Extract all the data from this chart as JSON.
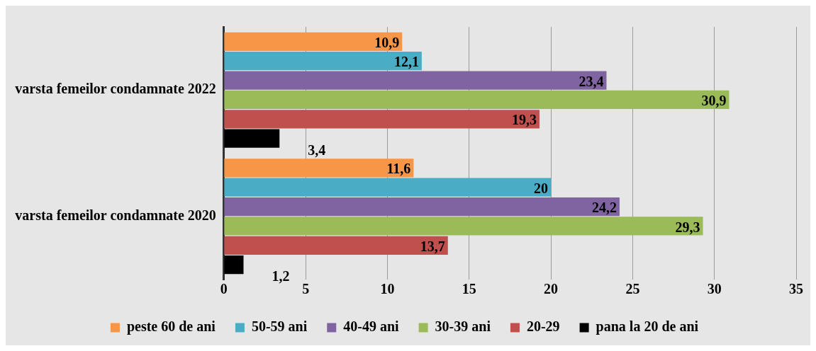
{
  "chart_data": {
    "type": "bar",
    "orientation": "horizontal",
    "categories": [
      "varsta femeilor condamnate 2022",
      "varsta femeilor condamnate 2020"
    ],
    "series": [
      {
        "name": "peste 60 de ani",
        "color": "#f79646",
        "values": [
          10.9,
          11.6
        ],
        "value_labels": [
          "10,9",
          "11,6"
        ]
      },
      {
        "name": "50-59 ani",
        "color": "#4bacc6",
        "values": [
          12.1,
          20
        ],
        "value_labels": [
          "12,1",
          "20"
        ]
      },
      {
        "name": "40-49 ani",
        "color": "#8064a2",
        "values": [
          23.4,
          24.2
        ],
        "value_labels": [
          "23,4",
          "24,2"
        ]
      },
      {
        "name": "30-39 ani",
        "color": "#9bbb59",
        "values": [
          30.9,
          29.3
        ],
        "value_labels": [
          "30,9",
          "29,3"
        ]
      },
      {
        "name": "20-29",
        "color": "#c0504d",
        "values": [
          19.3,
          13.7
        ],
        "value_labels": [
          "19,3",
          "13,7"
        ]
      },
      {
        "name": "pana la 20 de ani",
        "color": "#000000",
        "values": [
          3.4,
          1.2
        ],
        "value_labels": [
          "3,4",
          "1,2"
        ]
      }
    ],
    "xlim": [
      0,
      35
    ],
    "xticks": [
      0,
      5,
      10,
      15,
      20,
      25,
      30,
      35
    ],
    "grid": "x",
    "legend": "bottom"
  }
}
